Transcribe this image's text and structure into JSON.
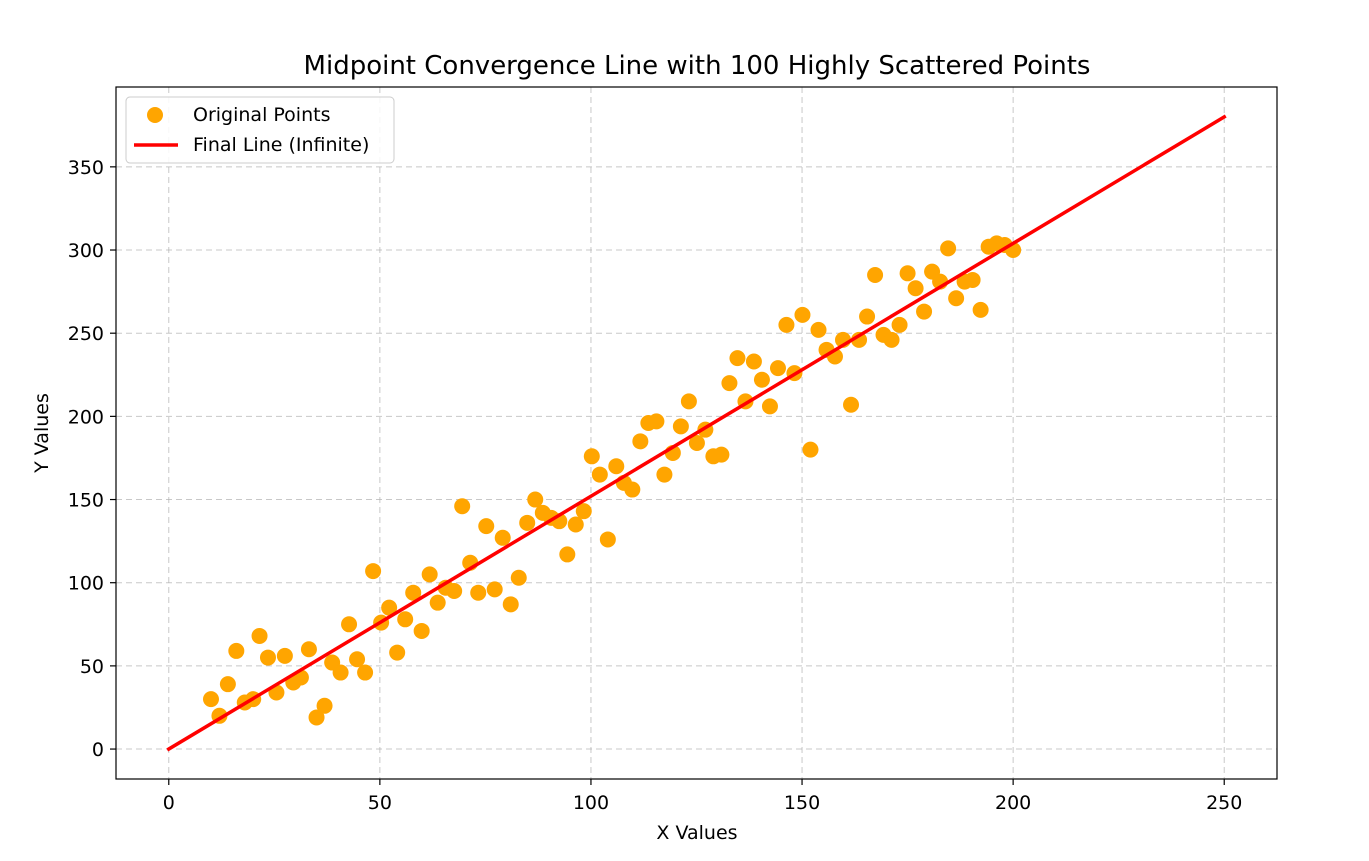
{
  "chart_data": {
    "type": "scatter",
    "title": "Midpoint Convergence Line with 100 Highly Scattered Points",
    "xlabel": "X Values",
    "ylabel": "Y Values",
    "xlim": [
      -12.5,
      262.5
    ],
    "ylim": [
      -18,
      398
    ],
    "x_ticks": [
      0,
      50,
      100,
      150,
      200,
      250
    ],
    "y_ticks": [
      0,
      50,
      100,
      150,
      200,
      250,
      300,
      350
    ],
    "grid": true,
    "legend_position": "top-left",
    "series": [
      {
        "name": "Original Points",
        "kind": "scatter",
        "color": "#ffa500",
        "points": [
          [
            10,
            30
          ],
          [
            12,
            20
          ],
          [
            14,
            39
          ],
          [
            16,
            59
          ],
          [
            18,
            28
          ],
          [
            20,
            30
          ],
          [
            21.5,
            68
          ],
          [
            23.5,
            55
          ],
          [
            25.5,
            34
          ],
          [
            27.5,
            56
          ],
          [
            29.5,
            40
          ],
          [
            31.3,
            43
          ],
          [
            33.2,
            60
          ],
          [
            35,
            19
          ],
          [
            36.9,
            26
          ],
          [
            38.7,
            52
          ],
          [
            40.7,
            46
          ],
          [
            42.7,
            75
          ],
          [
            44.6,
            54
          ],
          [
            46.5,
            46
          ],
          [
            48.4,
            107
          ],
          [
            50.3,
            76
          ],
          [
            52.2,
            85
          ],
          [
            54.1,
            58
          ],
          [
            56,
            78
          ],
          [
            57.9,
            94
          ],
          [
            59.9,
            71
          ],
          [
            61.8,
            105
          ],
          [
            63.7,
            88
          ],
          [
            65.6,
            97
          ],
          [
            67.6,
            95
          ],
          [
            69.5,
            146
          ],
          [
            71.4,
            112
          ],
          [
            73.3,
            94
          ],
          [
            75.2,
            134
          ],
          [
            77.2,
            96
          ],
          [
            79.1,
            127
          ],
          [
            81,
            87
          ],
          [
            82.9,
            103
          ],
          [
            84.9,
            136
          ],
          [
            86.8,
            150
          ],
          [
            88.6,
            142
          ],
          [
            90.6,
            139
          ],
          [
            92.5,
            137
          ],
          [
            94.4,
            117
          ],
          [
            96.4,
            135
          ],
          [
            98.3,
            143
          ],
          [
            100.2,
            176
          ],
          [
            102.1,
            165
          ],
          [
            104,
            126
          ],
          [
            106,
            170
          ],
          [
            107.8,
            160
          ],
          [
            109.8,
            156
          ],
          [
            111.7,
            185
          ],
          [
            113.6,
            196
          ],
          [
            115.5,
            197
          ],
          [
            117.4,
            165
          ],
          [
            119.4,
            178
          ],
          [
            121.3,
            194
          ],
          [
            123.2,
            209
          ],
          [
            125.1,
            184
          ],
          [
            127.1,
            192
          ],
          [
            129,
            176
          ],
          [
            130.9,
            177
          ],
          [
            132.8,
            220
          ],
          [
            134.7,
            235
          ],
          [
            136.6,
            209
          ],
          [
            138.6,
            233
          ],
          [
            140.5,
            222
          ],
          [
            142.4,
            206
          ],
          [
            144.3,
            229
          ],
          [
            146.3,
            255
          ],
          [
            148.2,
            226
          ],
          [
            150.1,
            261
          ],
          [
            152,
            180
          ],
          [
            153.9,
            252
          ],
          [
            155.8,
            240
          ],
          [
            157.8,
            236
          ],
          [
            159.7,
            246
          ],
          [
            161.6,
            207
          ],
          [
            163.5,
            246
          ],
          [
            165.4,
            260
          ],
          [
            167.3,
            285
          ],
          [
            169.3,
            249
          ],
          [
            171.2,
            246
          ],
          [
            173.1,
            255
          ],
          [
            175,
            286
          ],
          [
            176.9,
            277
          ],
          [
            178.9,
            263
          ],
          [
            180.8,
            287
          ],
          [
            182.7,
            281
          ],
          [
            184.6,
            301
          ],
          [
            186.5,
            271
          ],
          [
            188.5,
            281
          ],
          [
            190.4,
            282
          ],
          [
            192.3,
            264
          ],
          [
            194.2,
            302
          ],
          [
            196.1,
            304
          ],
          [
            198,
            303
          ],
          [
            200,
            300
          ]
        ]
      },
      {
        "name": "Final Line (Infinite)",
        "kind": "line",
        "color": "#ff0000",
        "x": [
          0,
          250
        ],
        "y": [
          0,
          380
        ]
      }
    ]
  }
}
